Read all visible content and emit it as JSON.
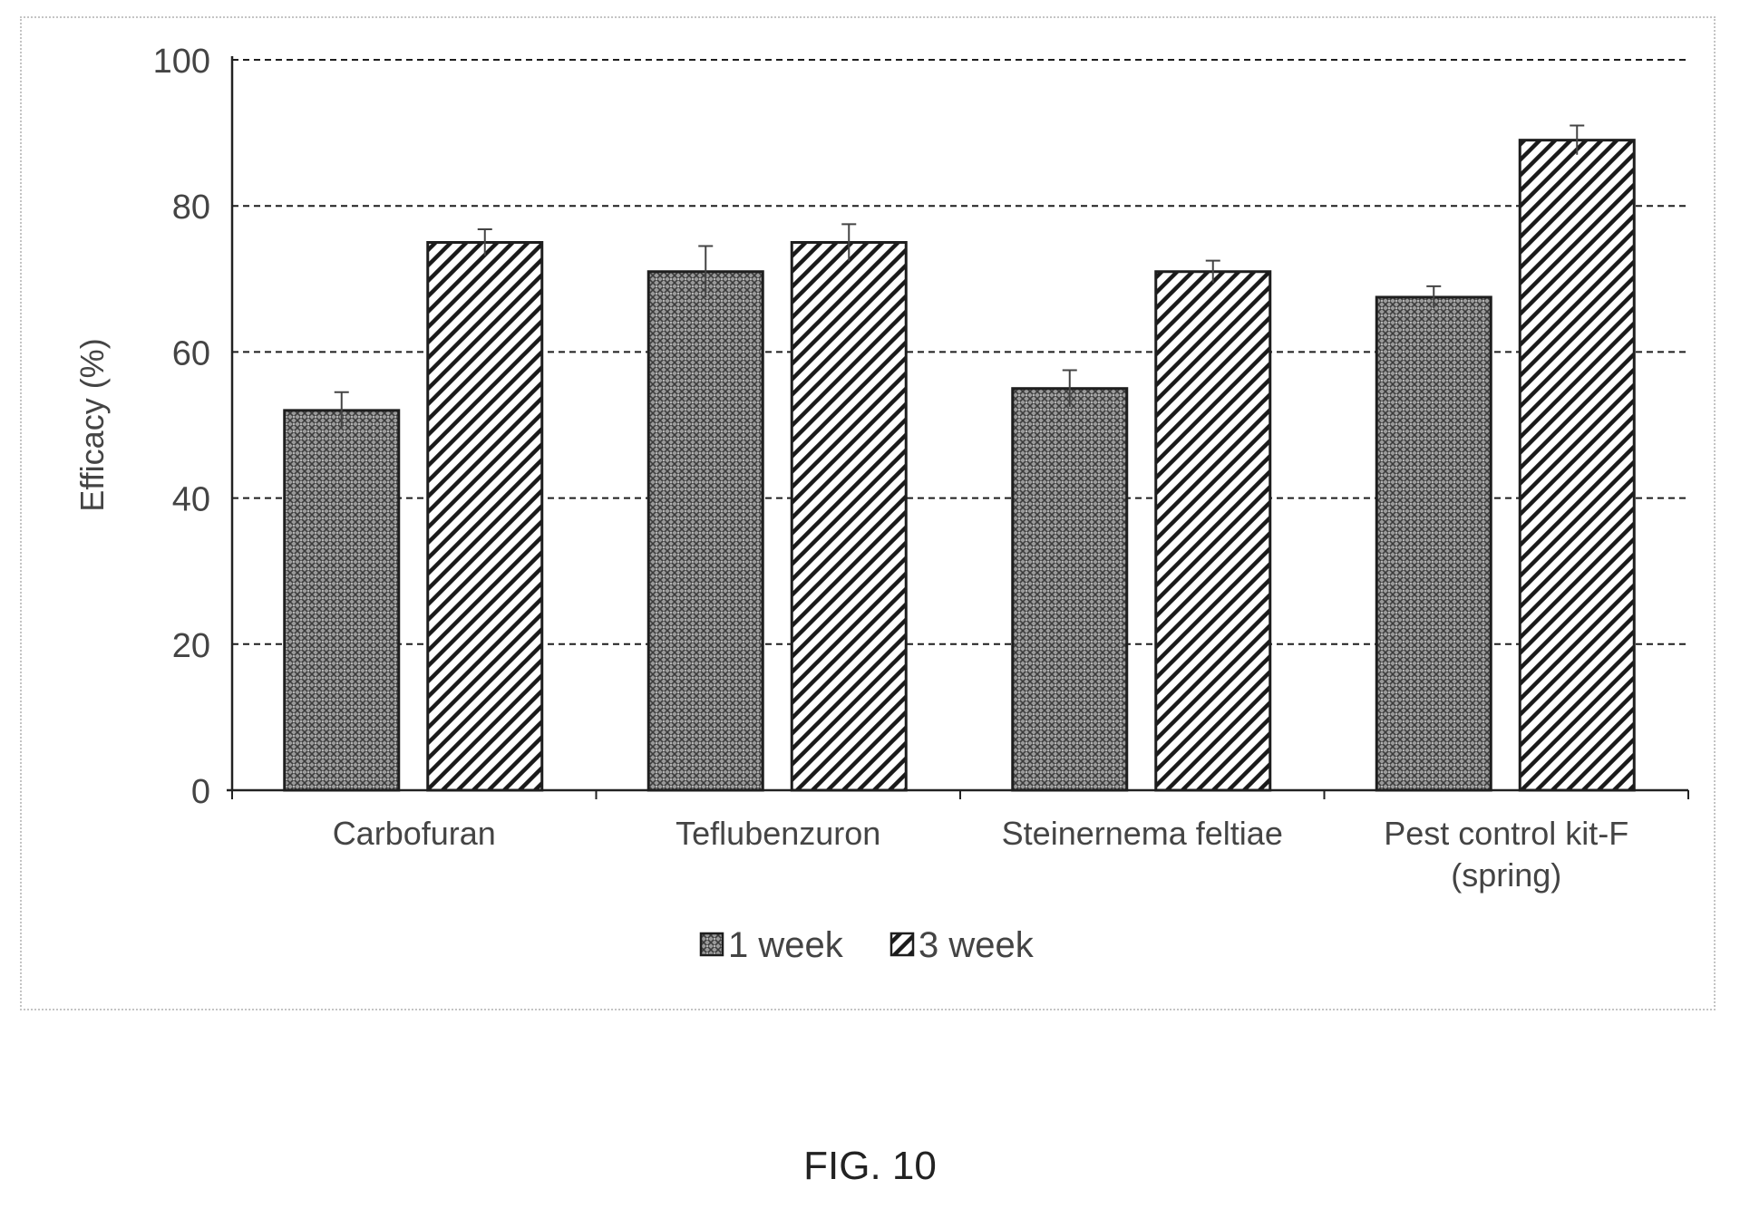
{
  "chart_data": {
    "type": "bar",
    "ylabel": "Efficacy (%)",
    "ylim": [
      0,
      100
    ],
    "yticks": [
      0,
      20,
      40,
      60,
      80,
      100
    ],
    "grid": true,
    "legend_position": "bottom",
    "categories": [
      [
        "Carbofuran"
      ],
      [
        "Teflubenzuron"
      ],
      [
        "Steinernema feltiae"
      ],
      [
        "Pest control kit-F",
        "(spring)"
      ]
    ],
    "series": [
      {
        "name": "1 week",
        "values": [
          52,
          71,
          55,
          67.5
        ],
        "errors": [
          2.5,
          3.5,
          2.5,
          1.5
        ],
        "pattern": "crosshatch",
        "color": "#8c8c8c"
      },
      {
        "name": "3 week",
        "values": [
          75,
          75,
          71,
          89
        ],
        "errors": [
          1.8,
          2.5,
          1.5,
          2.0
        ],
        "pattern": "diagonal",
        "color": "#222222"
      }
    ]
  },
  "caption": "FIG. 10"
}
